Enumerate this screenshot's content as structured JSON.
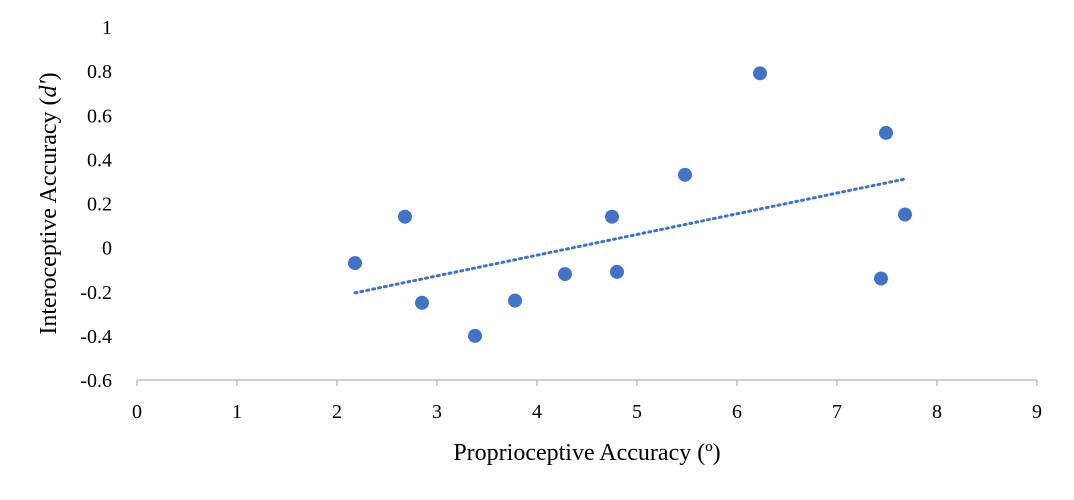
{
  "chart_data": {
    "type": "scatter",
    "title": "",
    "xlabel": "Proprioceptive Accuracy (º)",
    "ylabel_prefix": "Interoceptive Accuracy (",
    "ylabel_italic": "d'",
    "ylabel_suffix": ")",
    "xlim": [
      0,
      9
    ],
    "ylim": [
      -0.6,
      1
    ],
    "x_ticks": [
      "0",
      "1",
      "2",
      "3",
      "4",
      "5",
      "6",
      "7",
      "8",
      "9"
    ],
    "y_ticks": [
      "1",
      "0.8",
      "0.6",
      "0.4",
      "0.2",
      "0",
      "-0.2",
      "-0.4",
      "-0.6"
    ],
    "grid": false,
    "legend": "none",
    "marker_color": "#4472C4",
    "trendline": {
      "style": "dotted",
      "color": "#4472C4",
      "x": [
        2.18,
        7.7
      ],
      "y": [
        -0.205,
        0.313
      ]
    },
    "series": [
      {
        "points": [
          {
            "x": 2.18,
            "y": -0.07
          },
          {
            "x": 2.68,
            "y": 0.14
          },
          {
            "x": 2.85,
            "y": -0.25
          },
          {
            "x": 3.38,
            "y": -0.4
          },
          {
            "x": 3.78,
            "y": -0.24
          },
          {
            "x": 4.28,
            "y": -0.12
          },
          {
            "x": 4.75,
            "y": 0.14
          },
          {
            "x": 4.8,
            "y": -0.11
          },
          {
            "x": 5.48,
            "y": 0.33
          },
          {
            "x": 6.23,
            "y": 0.79
          },
          {
            "x": 7.44,
            "y": -0.14
          },
          {
            "x": 7.49,
            "y": 0.52
          },
          {
            "x": 7.68,
            "y": 0.15
          }
        ]
      }
    ]
  }
}
